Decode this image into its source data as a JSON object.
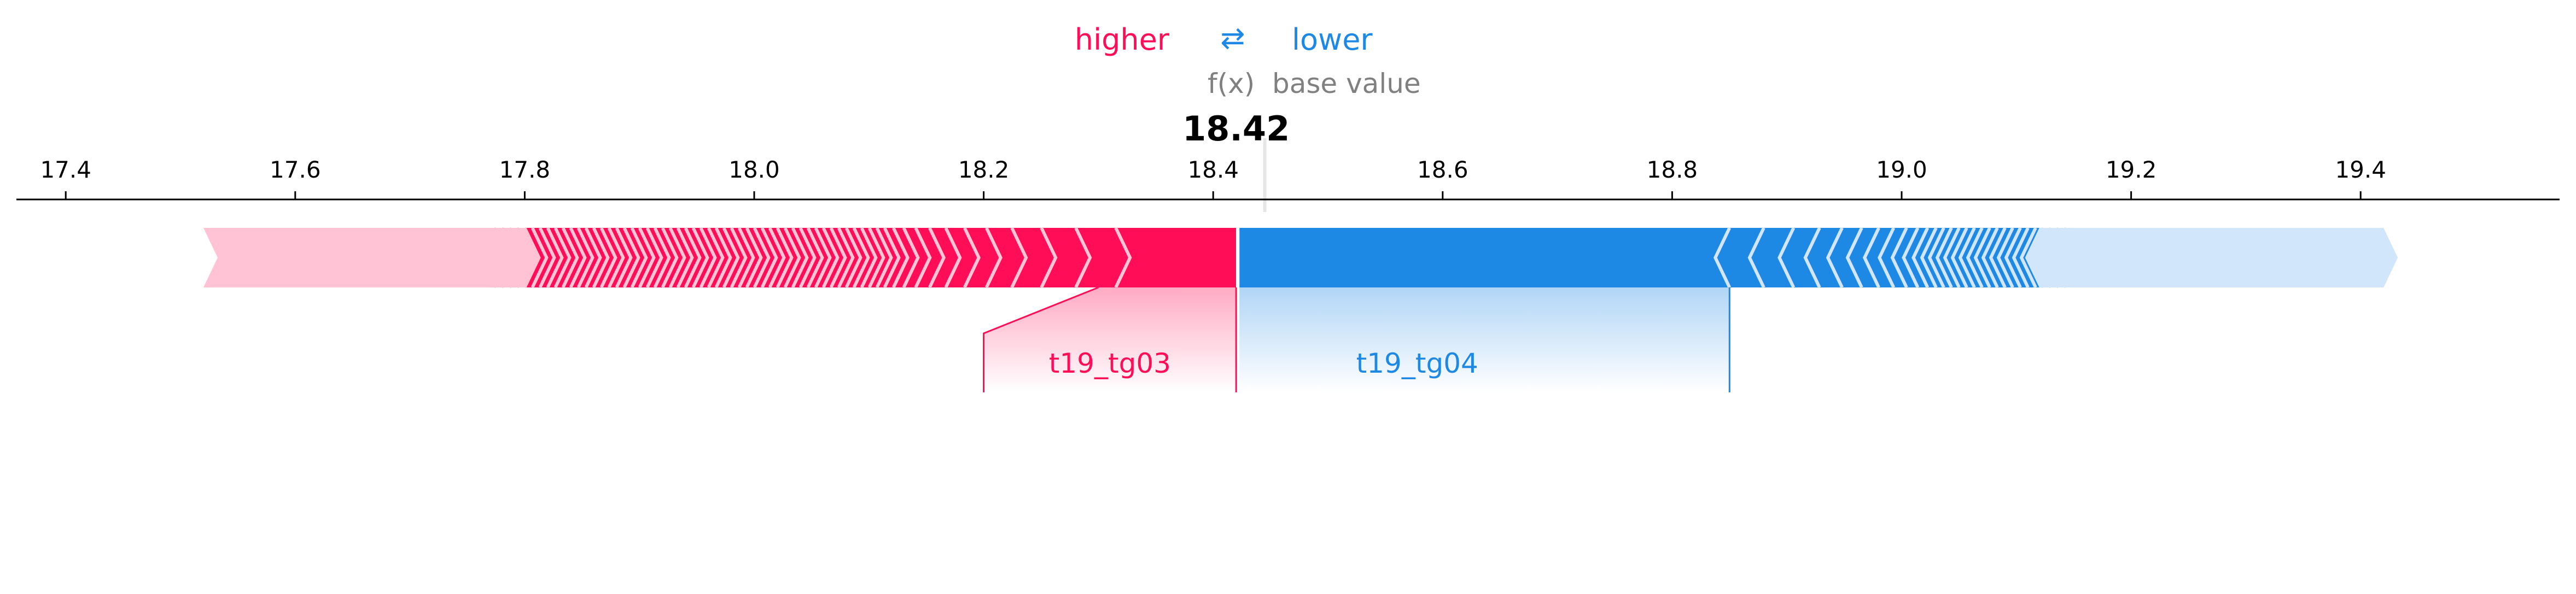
{
  "chart_data": {
    "type": "force",
    "legend": {
      "higher_label": "higher",
      "lower_label": "lower",
      "arrow_glyph": "⇄"
    },
    "fx_label": "f(x)",
    "base_value_label": "base value",
    "output_value": 18.42,
    "output_value_text": "18.42",
    "base_value": 18.445,
    "x_ticks": [
      17.4,
      17.6,
      17.8,
      18.0,
      18.2,
      18.4,
      18.6,
      18.8,
      19.0,
      19.2,
      19.4
    ],
    "x_tick_labels": [
      "17.4",
      "17.6",
      "17.8",
      "18.0",
      "18.2",
      "18.4",
      "18.6",
      "18.8",
      "19.0",
      "19.2",
      "19.4"
    ],
    "xlim": [
      17.36,
      19.6
    ],
    "positive_extent": [
      17.52,
      18.42
    ],
    "negative_extent": [
      18.42,
      19.42
    ],
    "features": [
      {
        "name": "t19_tg03",
        "effect": "positive",
        "start": 18.3,
        "end": 18.42
      },
      {
        "name": "t19_tg04",
        "effect": "negative",
        "start": 18.42,
        "end": 18.85
      }
    ],
    "colors": {
      "positive": "#ff0d57",
      "positive_light": "#ffc3d5",
      "negative": "#1e88e5",
      "negative_light": "#d1e6fa",
      "axis": "#000000",
      "muted_text": "#808080",
      "base_line": "#e6e6e6"
    }
  }
}
